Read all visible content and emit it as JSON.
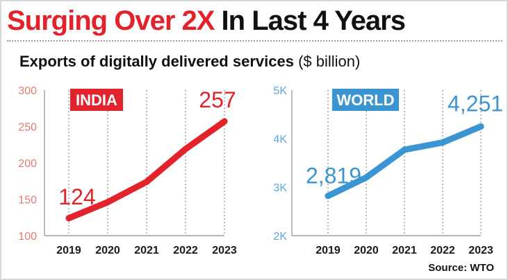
{
  "headline": {
    "part1": "Surging Over 2X",
    "part2": "In Last 4 Years"
  },
  "subtitle": {
    "main": "Exports of digitally delivered services",
    "unit": "($ billion)"
  },
  "source": "Source: WTO",
  "colors": {
    "red": "#e3232b",
    "blue": "#3b95d3",
    "ytick_red": "#e37a6f",
    "ytick_blue": "#5da7db",
    "grid": "#8c8c8c"
  },
  "chart_data": [
    {
      "type": "line",
      "badge": "INDIA",
      "x": [
        "2019",
        "2020",
        "2021",
        "2022",
        "2023"
      ],
      "series": [
        {
          "values": [
            124,
            146,
            174,
            219,
            257
          ]
        }
      ],
      "ylim": [
        100,
        300
      ],
      "yticks": [
        100,
        150,
        200,
        250,
        300
      ],
      "ytick_labels": [
        "100",
        "150",
        "200",
        "250",
        "300"
      ],
      "data_labels": [
        {
          "index": 0,
          "text": "124"
        },
        {
          "index": 4,
          "text": "257"
        }
      ],
      "grid": "vertical dotted",
      "color": "#e3232b"
    },
    {
      "type": "line",
      "badge": "WORLD",
      "x": [
        "2019",
        "2020",
        "2021",
        "2022",
        "2023"
      ],
      "series": [
        {
          "values": [
            2819,
            3200,
            3770,
            3920,
            4251
          ]
        }
      ],
      "ylim": [
        2000,
        5000
      ],
      "yticks": [
        2000,
        3000,
        4000,
        5000
      ],
      "ytick_labels": [
        "2K",
        "3K",
        "4K",
        "5K"
      ],
      "data_labels": [
        {
          "index": 0,
          "text": "2,819"
        },
        {
          "index": 4,
          "text": "4,251"
        }
      ],
      "grid": "vertical dotted",
      "color": "#3b95d3"
    }
  ]
}
